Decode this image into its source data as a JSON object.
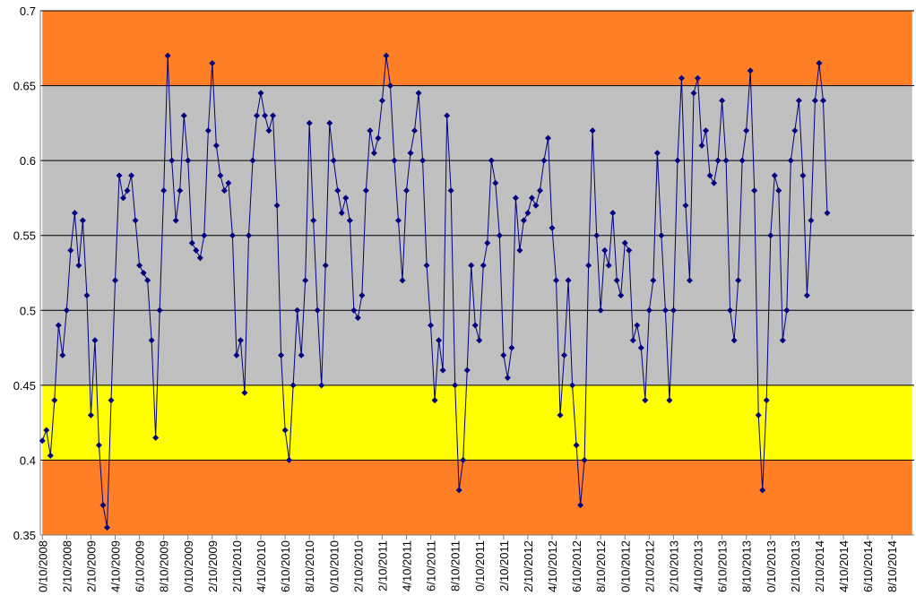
{
  "chart_data": {
    "type": "line",
    "categories": [
      "0/10/2008",
      null,
      null,
      null,
      null,
      null,
      "2/10/2008",
      null,
      null,
      null,
      null,
      null,
      "2/10/2009",
      null,
      null,
      null,
      null,
      null,
      "4/10/2009",
      null,
      null,
      null,
      null,
      null,
      "6/10/2009",
      null,
      null,
      null,
      null,
      null,
      "8/10/2009",
      null,
      null,
      null,
      null,
      null,
      "0/10/2009",
      null,
      null,
      null,
      null,
      null,
      "2/10/2009",
      null,
      null,
      null,
      null,
      null,
      "2/10/2010",
      null,
      null,
      null,
      null,
      null,
      "4/10/2010",
      null,
      null,
      null,
      null,
      null,
      "6/10/2010",
      null,
      null,
      null,
      null,
      null,
      "8/10/2010",
      null,
      null,
      null,
      null,
      null,
      "0/10/2010",
      null,
      null,
      null,
      null,
      null,
      "2/10/2010",
      null,
      null,
      null,
      null,
      null,
      "2/10/2011",
      null,
      null,
      null,
      null,
      null,
      "4/10/2011",
      null,
      null,
      null,
      null,
      null,
      "6/10/2011",
      null,
      null,
      null,
      null,
      null,
      "8/10/2011",
      null,
      null,
      null,
      null,
      null,
      "0/10/2011",
      null,
      null,
      null,
      null,
      null,
      "2/10/2011",
      null,
      null,
      null,
      null,
      null,
      "2/10/2012",
      null,
      null,
      null,
      null,
      null,
      "4/10/2012",
      null,
      null,
      null,
      null,
      null,
      "6/10/2012",
      null,
      null,
      null,
      null,
      null,
      "8/10/2012",
      null,
      null,
      null,
      null,
      null,
      "0/10/2012",
      null,
      null,
      null,
      null,
      null,
      "2/10/2012",
      null,
      null,
      null,
      null,
      null,
      "2/10/2013",
      null,
      null,
      null,
      null,
      null,
      "4/10/2013",
      null,
      null,
      null,
      null,
      null,
      "6/10/2013",
      null,
      null,
      null,
      null,
      null,
      "8/10/2013",
      null,
      null,
      null,
      null,
      null,
      "0/10/2013",
      null,
      null,
      null,
      null,
      null,
      "2/10/2013",
      null,
      null,
      null,
      null,
      null,
      "2/10/2014",
      null,
      null,
      null,
      null,
      null,
      "4/10/2014",
      null,
      null,
      null,
      null,
      null,
      "6/10/2014",
      null,
      null,
      null,
      null,
      null,
      "8/10/2014",
      null,
      null,
      null,
      null,
      null
    ],
    "series": [
      {
        "color": "#000080",
        "values": [
          0.413,
          0.42,
          0.403,
          0.44,
          0.49,
          0.47,
          0.5,
          0.54,
          0.565,
          0.53,
          0.56,
          0.51,
          0.43,
          0.48,
          0.41,
          0.37,
          0.355,
          0.44,
          0.52,
          0.59,
          0.575,
          0.58,
          0.59,
          0.56,
          0.53,
          0.525,
          0.52,
          0.48,
          0.415,
          0.5,
          0.58,
          0.67,
          0.6,
          0.56,
          0.58,
          0.63,
          0.6,
          0.545,
          0.54,
          0.535,
          0.55,
          0.62,
          0.665,
          0.61,
          0.59,
          0.58,
          0.585,
          0.55,
          0.47,
          0.48,
          0.445,
          0.55,
          0.6,
          0.63,
          0.645,
          0.63,
          0.62,
          0.63,
          0.57,
          0.47,
          0.42,
          0.4,
          0.45,
          0.5,
          0.47,
          0.52,
          0.625,
          0.56,
          0.5,
          0.45,
          0.53,
          0.625,
          0.6,
          0.58,
          0.565,
          0.575,
          0.56,
          0.5,
          0.495,
          0.51,
          0.58,
          0.62,
          0.605,
          0.615,
          0.64,
          0.67,
          0.65,
          0.6,
          0.56,
          0.52,
          0.58,
          0.605,
          0.62,
          0.645,
          0.6,
          0.53,
          0.49,
          0.44,
          0.48,
          0.46,
          0.63,
          0.58,
          0.45,
          0.38,
          0.4,
          0.46,
          0.53,
          0.49,
          0.48,
          0.53,
          0.545,
          0.6,
          0.585,
          0.55,
          0.47,
          0.455,
          0.475,
          0.575,
          0.54,
          0.56,
          0.565,
          0.575,
          0.57,
          0.58,
          0.6,
          0.615,
          0.555,
          0.52,
          0.43,
          0.47,
          0.52,
          0.45,
          0.41,
          0.37,
          0.4,
          0.53,
          0.62,
          0.55,
          0.5,
          0.54,
          0.53,
          0.565,
          0.52,
          0.51,
          0.545,
          0.54,
          0.48,
          0.49,
          0.475,
          0.44,
          0.5,
          0.52,
          0.605,
          0.55,
          0.5,
          0.44,
          0.5,
          0.6,
          0.655,
          0.57,
          0.52,
          0.645,
          0.655,
          0.61,
          0.62,
          0.59,
          0.585,
          0.6,
          0.64,
          0.6,
          0.5,
          0.48,
          0.52,
          0.6,
          0.62,
          0.66,
          0.58,
          0.43,
          0.38,
          0.44,
          0.55,
          0.59,
          0.58,
          0.48,
          0.5,
          0.6,
          0.62,
          0.64,
          0.59,
          0.51,
          0.56,
          0.64,
          0.665,
          0.64,
          0.565,
          null,
          null,
          null,
          null,
          null,
          null,
          null,
          null,
          null,
          null,
          null,
          null,
          null,
          null,
          null,
          null,
          null,
          null,
          null,
          null,
          null
        ]
      }
    ],
    "bands": [
      {
        "from": 0.35,
        "to": 0.4,
        "color": "#ff7f27"
      },
      {
        "from": 0.4,
        "to": 0.45,
        "color": "#ffff00"
      },
      {
        "from": 0.45,
        "to": 0.65,
        "color": "#c0c0c0"
      },
      {
        "from": 0.65,
        "to": 0.7,
        "color": "#ff7f27"
      }
    ],
    "ylim": [
      0.35,
      0.7
    ],
    "yticks": [
      0.35,
      0.4,
      0.45,
      0.5,
      0.55,
      0.6,
      0.65,
      0.7
    ],
    "grid": true
  }
}
